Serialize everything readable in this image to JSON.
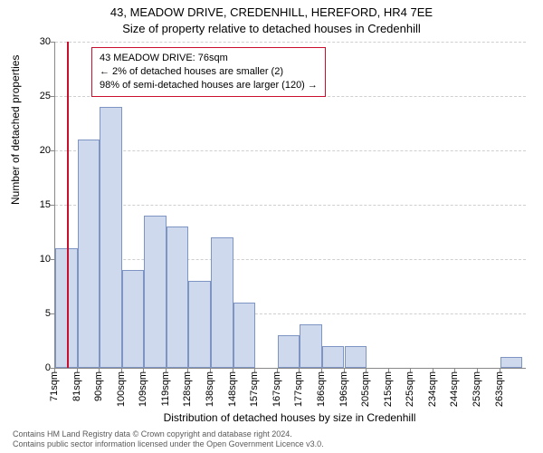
{
  "titles": {
    "line1": "43, MEADOW DRIVE, CREDENHILL, HEREFORD, HR4 7EE",
    "line2": "Size of property relative to detached houses in Credenhill"
  },
  "axes": {
    "ylabel": "Number of detached properties",
    "xlabel": "Distribution of detached houses by size in Credenhill",
    "ylim": [
      0,
      30
    ],
    "ytick_step": 5,
    "yticks": [
      0,
      5,
      10,
      15,
      20,
      25,
      30
    ],
    "xtick_labels": [
      "71sqm",
      "81sqm",
      "90sqm",
      "100sqm",
      "109sqm",
      "119sqm",
      "128sqm",
      "138sqm",
      "148sqm",
      "157sqm",
      "167sqm",
      "177sqm",
      "186sqm",
      "196sqm",
      "205sqm",
      "215sqm",
      "225sqm",
      "234sqm",
      "244sqm",
      "253sqm",
      "263sqm"
    ]
  },
  "histogram": {
    "type": "bar",
    "x_start": 71,
    "x_end": 272,
    "x_tick_step": 9.5,
    "bin_width_sqm": 9.5,
    "counts": [
      11,
      21,
      24,
      9,
      14,
      13,
      8,
      12,
      6,
      0,
      3,
      4,
      2,
      2,
      0,
      0,
      0,
      0,
      0,
      0,
      1
    ],
    "bar_fill": "#cfd9ed",
    "bar_border": "#7e94c2",
    "grid_color": "#cfcfcf",
    "background": "#ffffff"
  },
  "reference": {
    "visible": true,
    "value_sqm": 76,
    "color": "#c8102e"
  },
  "callout": {
    "border_color": "#c8102e",
    "lines": [
      "43 MEADOW DRIVE: 76sqm",
      "← 2% of detached houses are smaller (2)",
      "98% of semi-detached houses are larger (120) →"
    ]
  },
  "footer": {
    "line1": "Contains HM Land Registry data © Crown copyright and database right 2024.",
    "line2": "Contains public sector information licensed under the Open Government Licence v3.0."
  },
  "style": {
    "font_family": "Arial, Helvetica, sans-serif",
    "title_fontsize": 13,
    "axis_label_fontsize": 12,
    "tick_fontsize": 11,
    "callout_fontsize": 11,
    "footer_fontsize": 9
  }
}
